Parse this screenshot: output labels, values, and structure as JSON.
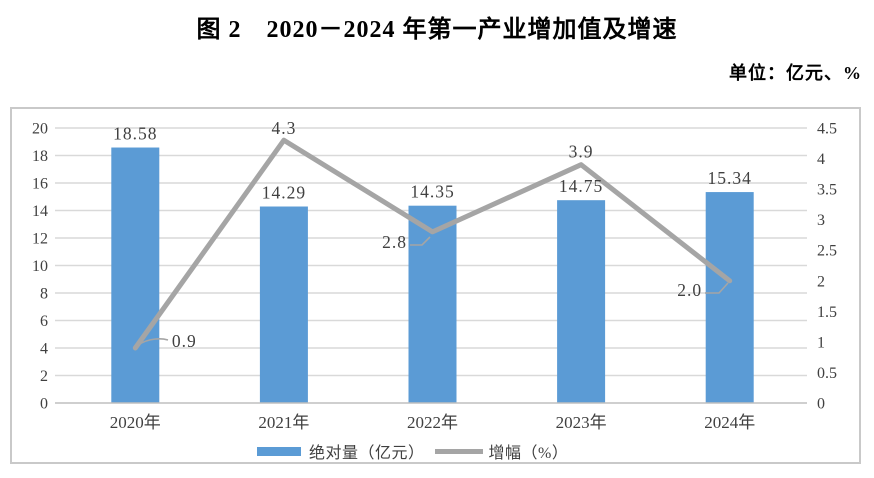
{
  "title": "图 2　2020－2024 年第一产业增加值及增速",
  "unit_label": "单位：亿元、%",
  "chart_data": {
    "type": "bar",
    "subtype": "combo-bar-line-dual-axis",
    "categories": [
      "2020年",
      "2021年",
      "2022年",
      "2023年",
      "2024年"
    ],
    "series": [
      {
        "name": "绝对量（亿元）",
        "chart": "bar",
        "axis": "left",
        "color": "#5B9BD5",
        "values": [
          18.58,
          14.29,
          14.35,
          14.75,
          15.34
        ],
        "labels": [
          "18.58",
          "14.29",
          "14.35",
          "14.75",
          "15.34"
        ]
      },
      {
        "name": "增幅（%）",
        "chart": "line",
        "axis": "right",
        "color": "#A5A5A5",
        "values": [
          0.9,
          4.3,
          2.8,
          3.9,
          2.0
        ],
        "labels": [
          "0.9",
          "4.3",
          "2.8",
          "3.9",
          "2.0"
        ]
      }
    ],
    "left_axis": {
      "min": 0,
      "max": 20,
      "step": 2,
      "tick_labels": [
        "0",
        "2",
        "4",
        "6",
        "8",
        "10",
        "12",
        "14",
        "16",
        "18",
        "20"
      ]
    },
    "right_axis": {
      "min": 0,
      "max": 4.5,
      "step": 0.5,
      "tick_labels": [
        "0",
        "0.5",
        "1",
        "1.5",
        "2",
        "2.5",
        "3",
        "3.5",
        "4",
        "4.5"
      ]
    },
    "grid": true,
    "legend_position": "bottom",
    "colors": {
      "grid": "#D9D9D9",
      "axis_line": "#BFBFBF",
      "text": "#404040"
    }
  }
}
